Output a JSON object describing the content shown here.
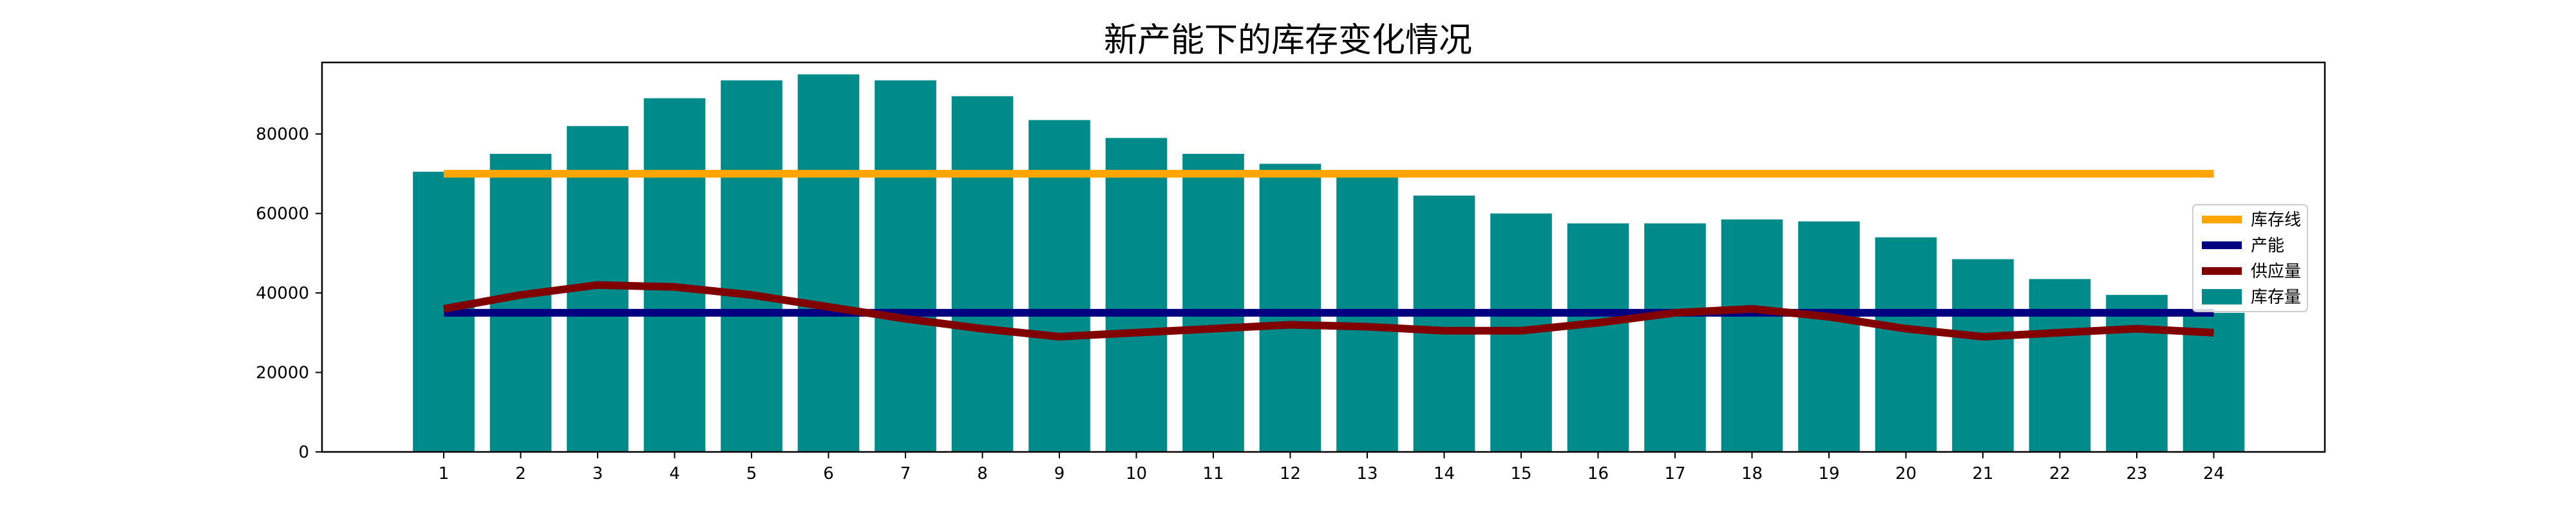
{
  "chart_data": {
    "type": "bar",
    "title": "新产能下的库存变化情况",
    "xlabel": "",
    "ylabel": "",
    "categories": [
      "1",
      "2",
      "3",
      "4",
      "5",
      "6",
      "7",
      "8",
      "9",
      "10",
      "11",
      "12",
      "13",
      "14",
      "15",
      "16",
      "17",
      "18",
      "19",
      "20",
      "21",
      "22",
      "23",
      "24"
    ],
    "ylim": [
      0,
      98000
    ],
    "yticks": [
      0,
      20000,
      40000,
      60000,
      80000
    ],
    "grid": false,
    "legend_position": "center-right",
    "bar_series": {
      "name": "库存量",
      "color": "#008b8b",
      "values": [
        70500,
        75000,
        82000,
        89000,
        93500,
        95000,
        93500,
        89500,
        83500,
        79000,
        75000,
        72500,
        69500,
        64500,
        60000,
        57500,
        57500,
        58500,
        58000,
        54000,
        48500,
        43500,
        39500,
        35000
      ]
    },
    "line_series": [
      {
        "name": "库存线",
        "color": "#ffa500",
        "values": [
          70000,
          70000,
          70000,
          70000,
          70000,
          70000,
          70000,
          70000,
          70000,
          70000,
          70000,
          70000,
          70000,
          70000,
          70000,
          70000,
          70000,
          70000,
          70000,
          70000,
          70000,
          70000,
          70000,
          70000
        ]
      },
      {
        "name": "产能",
        "color": "#000080",
        "values": [
          35000,
          35000,
          35000,
          35000,
          35000,
          35000,
          35000,
          35000,
          35000,
          35000,
          35000,
          35000,
          35000,
          35000,
          35000,
          35000,
          35000,
          35000,
          35000,
          35000,
          35000,
          35000,
          35000,
          35000
        ]
      },
      {
        "name": "供应量",
        "color": "#800000",
        "values": [
          36000,
          39500,
          42000,
          41500,
          39500,
          36500,
          33500,
          31000,
          29000,
          30000,
          31000,
          32000,
          31500,
          30500,
          30500,
          32500,
          35000,
          36000,
          34000,
          31000,
          29000,
          30000,
          31000,
          30000
        ]
      }
    ],
    "legend_order": [
      "库存线",
      "产能",
      "供应量",
      "库存量"
    ]
  }
}
